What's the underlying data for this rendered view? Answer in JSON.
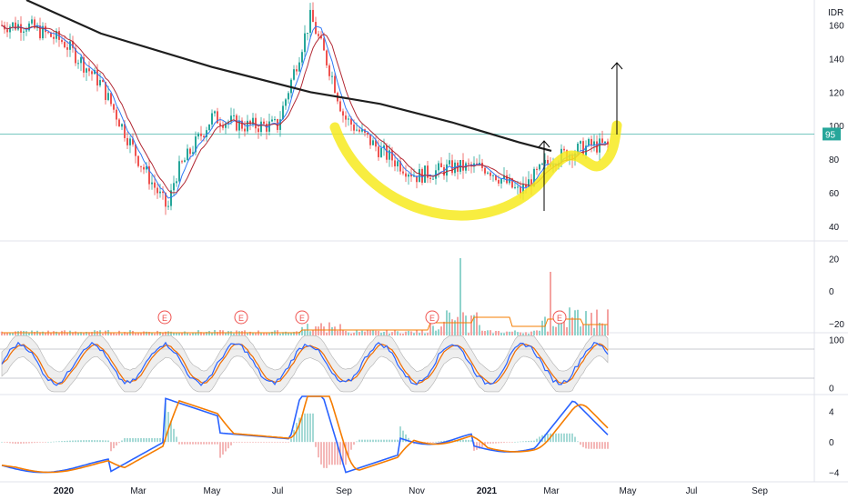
{
  "currency_label": "IDR",
  "last_price_label": "95",
  "colors": {
    "up": "#26a69a",
    "down": "#ef5350",
    "ma_long": "#1e1e1e",
    "ma_short_a": "#3179f5",
    "ma_short_b": "#b22833",
    "highlight": "#f7ea1e",
    "price_line": "#26a69a",
    "volume_ma": "#f57c00",
    "stoch_k": "#2962ff",
    "stoch_d": "#ef6c00",
    "band_fill": "#d9d9d9",
    "macd_line": "#2962ff",
    "signal_line": "#f57c00",
    "arrow": "#000000",
    "earnings_marker": "#ef5350"
  },
  "earnings_marker_label": "E",
  "chart_data": [
    {
      "type": "candlestick",
      "panel": "price",
      "y_ticks": [
        40,
        60,
        80,
        100,
        120,
        140,
        160
      ],
      "ylim": [
        35,
        175
      ],
      "x_labels": [
        "2020",
        "Mar",
        "May",
        "Jul",
        "Sep",
        "Nov",
        "2021",
        "Mar",
        "May",
        "Jul",
        "Sep"
      ],
      "price_series": [
        {
          "x": "2019-12",
          "y": 160
        },
        {
          "x": "2020-01",
          "y": 150
        },
        {
          "x": "2020-02",
          "y": 125
        },
        {
          "x": "2020-03",
          "y": 80
        },
        {
          "x": "2020-03-25",
          "y": 50
        },
        {
          "x": "2020-04",
          "y": 70
        },
        {
          "x": "2020-05",
          "y": 105
        },
        {
          "x": "2020-06",
          "y": 100
        },
        {
          "x": "2020-07",
          "y": 100
        },
        {
          "x": "2020-08",
          "y": 165
        },
        {
          "x": "2020-08-20",
          "y": 130
        },
        {
          "x": "2020-09",
          "y": 105
        },
        {
          "x": "2020-10",
          "y": 85
        },
        {
          "x": "2020-11",
          "y": 70
        },
        {
          "x": "2020-12",
          "y": 75
        },
        {
          "x": "2021-01",
          "y": 75
        },
        {
          "x": "2021-02",
          "y": 60
        },
        {
          "x": "2021-03",
          "y": 80
        },
        {
          "x": "2021-04",
          "y": 88
        }
      ],
      "ma_long": [
        {
          "x": "2019-12",
          "y": 175
        },
        {
          "x": "2020-02",
          "y": 155
        },
        {
          "x": "2020-05",
          "y": 135
        },
        {
          "x": "2020-08",
          "y": 120
        },
        {
          "x": "2020-10",
          "y": 113
        },
        {
          "x": "2020-12",
          "y": 102
        },
        {
          "x": "2021-02",
          "y": 90
        },
        {
          "x": "2021-03",
          "y": 85
        }
      ],
      "last_price": 95
    },
    {
      "type": "bar",
      "panel": "volume",
      "y_ticks": [
        -20,
        0,
        20
      ],
      "ylim": [
        -25,
        28
      ]
    },
    {
      "type": "line",
      "panel": "stochastic",
      "y_ticks": [
        0,
        100
      ],
      "ylim": [
        -10,
        110
      ]
    },
    {
      "type": "bar",
      "panel": "macd",
      "y_ticks": [
        -4,
        0,
        4
      ],
      "ylim": [
        -5,
        6
      ]
    }
  ]
}
